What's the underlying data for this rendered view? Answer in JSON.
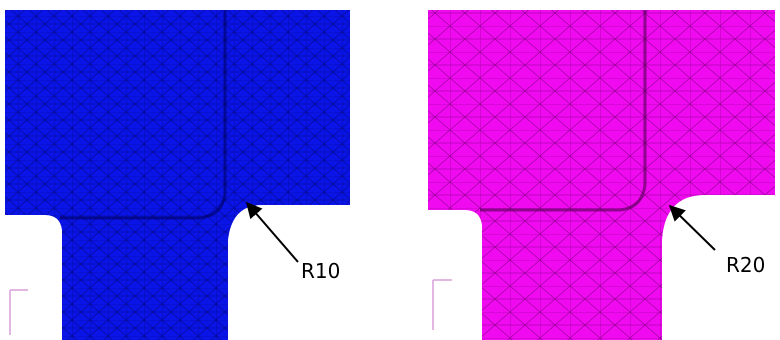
{
  "panels": [
    {
      "label": "R10"
    },
    {
      "label": "R20"
    }
  ]
}
